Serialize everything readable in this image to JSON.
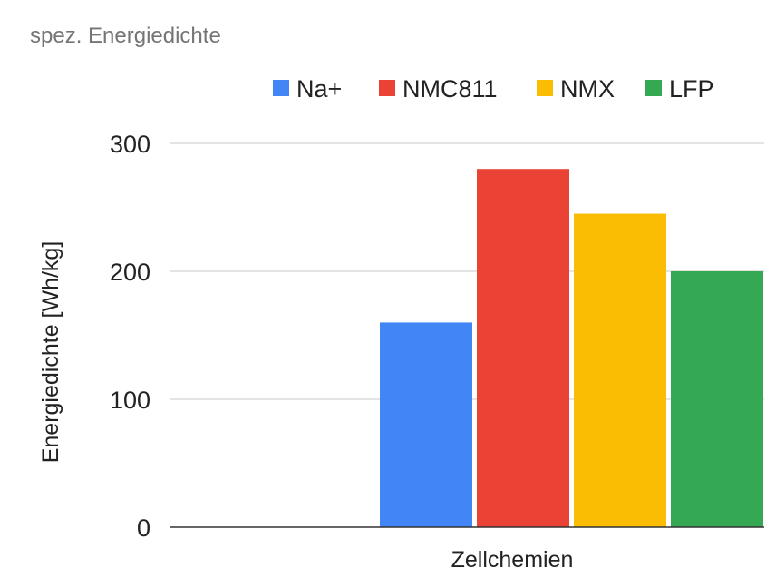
{
  "chart_data": {
    "type": "bar",
    "title": "spez. Energiedichte",
    "xlabel": "Zellchemien",
    "ylabel": "Energiedichte [Wh/kg]",
    "categories": [
      ""
    ],
    "ylim": [
      0,
      300
    ],
    "yticks": [
      0,
      100,
      200,
      300
    ],
    "grid": true,
    "legend_position": "top-right",
    "series": [
      {
        "name": "Na+",
        "values": [
          160
        ],
        "color": "#4285f4"
      },
      {
        "name": "NMC811",
        "values": [
          280
        ],
        "color": "#ea4335"
      },
      {
        "name": "NMX",
        "values": [
          245
        ],
        "color": "#fbbc04"
      },
      {
        "name": "LFP",
        "values": [
          200
        ],
        "color": "#34a853"
      }
    ]
  }
}
